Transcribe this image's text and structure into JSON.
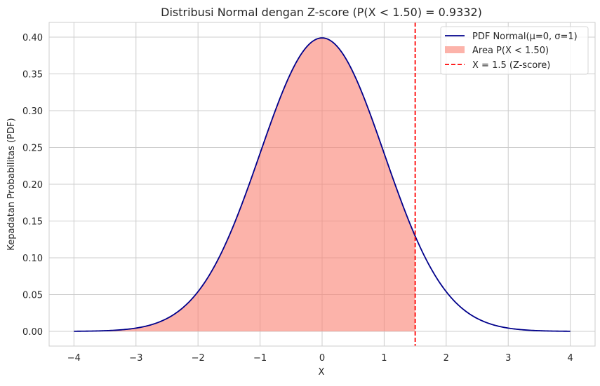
{
  "chart_data": {
    "type": "line",
    "title": "Distribusi Normal dengan Z-score (P(X < 1.50) = 0.9332)",
    "xlabel": "X",
    "ylabel": "Kepadatan Probabilitas (PDF)",
    "xlim": [
      -4.4,
      4.4
    ],
    "ylim": [
      -0.02,
      0.42
    ],
    "xticks": [
      -4,
      -3,
      -2,
      -1,
      0,
      1,
      2,
      3,
      4
    ],
    "xtick_labels": [
      "−4",
      "−3",
      "−2",
      "−1",
      "0",
      "1",
      "2",
      "3",
      "4"
    ],
    "yticks": [
      0,
      0.05,
      0.1,
      0.15,
      0.2,
      0.25,
      0.3,
      0.35,
      0.4
    ],
    "ytick_labels": [
      "0.00",
      "0.05",
      "0.10",
      "0.15",
      "0.20",
      "0.25",
      "0.30",
      "0.35",
      "0.40"
    ],
    "grid": true,
    "legend_position": "top-right",
    "distribution": {
      "mu": 0,
      "sigma": 1
    },
    "series": [
      {
        "name": "PDF Normal(μ=0, σ=1)",
        "color": "#00008b",
        "x": [
          -4,
          -3.5,
          -3,
          -2.5,
          -2,
          -1.5,
          -1,
          -0.5,
          0,
          0.5,
          1,
          1.5,
          2,
          2.5,
          3,
          3.5,
          4
        ],
        "y": [
          0.0001,
          0.0009,
          0.0044,
          0.0175,
          0.054,
          0.1295,
          0.242,
          0.3521,
          0.3989,
          0.3521,
          0.242,
          0.1295,
          0.054,
          0.0175,
          0.0044,
          0.0009,
          0.0001
        ]
      }
    ],
    "area": {
      "name": "Area P(X < 1.50)",
      "from": -4,
      "to": 1.5,
      "color": "#fa8072"
    },
    "vline": {
      "name": "X = 1.5 (Z-score)",
      "x": 1.5,
      "color": "#ff0000",
      "style": "dashed"
    }
  }
}
